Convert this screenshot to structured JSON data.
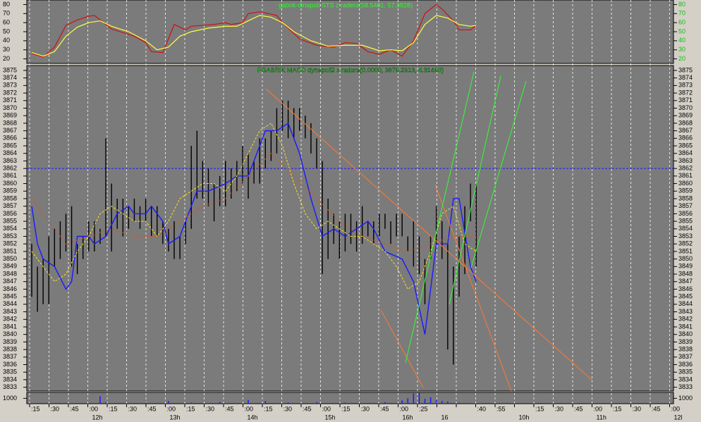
{
  "time_axis": {
    "labels": [
      ":15",
      ":30",
      ":45",
      ":00",
      ":15",
      ":30",
      ":45",
      ":00",
      ":15",
      ":30",
      ":45",
      ":00",
      ":15",
      ":30",
      ":45",
      ":00",
      ":15",
      ":30",
      ":45",
      ":00",
      ":25",
      null,
      null,
      ":40",
      ":55",
      null,
      ":15",
      ":30",
      ":45",
      ":00",
      ":15",
      ":30",
      ":45",
      ":00"
    ],
    "hours": [
      null,
      null,
      null,
      "12h",
      null,
      null,
      null,
      "13h",
      null,
      null,
      null,
      "14h",
      null,
      null,
      null,
      "15h",
      null,
      null,
      null,
      "16h",
      null,
      "16",
      null,
      null,
      null,
      "10h",
      null,
      null,
      null,
      "11h",
      null,
      null,
      null,
      "12l"
    ]
  },
  "chart_data": [
    {
      "type": "line",
      "title": "gabrik-dinapoli STS z radera(58.5481, 57.3828)",
      "ylim": [
        15,
        85
      ],
      "yticks": [
        20,
        30,
        40,
        50,
        60,
        70,
        80
      ],
      "series": [
        {
          "color": "#d01010",
          "x": [
            0,
            2,
            4,
            6,
            8,
            10,
            11,
            14,
            18,
            20,
            21,
            23,
            25,
            27,
            28,
            32,
            34,
            35,
            37,
            38,
            40,
            43,
            44,
            46,
            47,
            50,
            53,
            55,
            57,
            59,
            61,
            63,
            65,
            67,
            69,
            71,
            72,
            74,
            75,
            77,
            78
          ],
          "values": [
            26,
            22,
            33,
            57,
            63,
            67,
            68,
            53,
            45,
            38,
            28,
            27,
            58,
            52,
            56,
            58,
            60,
            58,
            60,
            70,
            72,
            68,
            60,
            48,
            42,
            35,
            33,
            38,
            37,
            28,
            25,
            30,
            23,
            40,
            70,
            80,
            75,
            62,
            52,
            52,
            57
          ]
        },
        {
          "color": "#ffff40",
          "x": [
            0,
            2,
            4,
            6,
            8,
            10,
            12,
            14,
            17,
            20,
            22,
            24,
            26,
            28,
            31,
            34,
            36,
            38,
            40,
            42,
            44,
            46,
            49,
            52,
            55,
            58,
            61,
            63,
            65,
            67,
            69,
            71,
            73,
            75,
            77,
            78
          ],
          "values": [
            27,
            23,
            28,
            45,
            55,
            60,
            62,
            56,
            50,
            40,
            30,
            33,
            45,
            50,
            54,
            56,
            56,
            62,
            68,
            66,
            60,
            50,
            40,
            34,
            35,
            35,
            29,
            30,
            29,
            38,
            58,
            68,
            65,
            58,
            56,
            57
          ]
        }
      ]
    },
    {
      "type": "ohlc",
      "title": "FGABRIK MACD dynapoli2 z radera(0.0000, 3876.2913, 4.31460)",
      "ylim": [
        3832.5,
        3875.65
      ],
      "yticks": [
        3833,
        3834,
        3835,
        3836,
        3837,
        3838,
        3839,
        3840,
        3841,
        3842,
        3843,
        3844,
        3845,
        3846,
        3847,
        3848,
        3849,
        3850,
        3851,
        3852,
        3853,
        3854,
        3855,
        3856,
        3857,
        3858,
        3859,
        3860,
        3861,
        3862,
        3863,
        3864,
        3865,
        3866,
        3867,
        3868,
        3869,
        3870,
        3871,
        3872,
        3873,
        3874,
        3875
      ],
      "high": [
        3852,
        3849,
        3850,
        3853,
        3854,
        3855,
        3856,
        3857,
        3852,
        3853,
        3855,
        3855,
        3854,
        3866,
        3860,
        3858,
        3858,
        3857,
        3858,
        3857,
        3858,
        3857,
        3857,
        3855,
        3854,
        3855,
        3853,
        3855,
        3865,
        3867,
        3863,
        3862,
        3860,
        3861,
        3863,
        3862,
        3863,
        3865,
        3864,
        3863,
        3866,
        3866,
        3867,
        3870,
        3871,
        3871,
        3870,
        3870,
        3869,
        3868,
        3866,
        3863,
        3858,
        3856,
        3855,
        3856,
        3856,
        3855,
        3857,
        3855,
        3855,
        3856,
        3856,
        3855,
        3856,
        3856,
        3853,
        3855,
        3853,
        3850,
        3853,
        3857,
        3855,
        3852,
        3849,
        3853,
        3857,
        3860,
        3860
      ],
      "low": [
        3845,
        3843,
        3844,
        3844,
        3849,
        3850,
        3851,
        3849,
        3848,
        3850,
        3851,
        3851,
        3852,
        3853,
        3851,
        3854,
        3853,
        3854,
        3855,
        3854,
        3855,
        3853,
        3853,
        3852,
        3851,
        3850,
        3850,
        3852,
        3854,
        3858,
        3858,
        3857,
        3855,
        3857,
        3857,
        3858,
        3859,
        3860,
        3858,
        3860,
        3860,
        3862,
        3863,
        3864,
        3867,
        3866,
        3866,
        3867,
        3866,
        3864,
        3862,
        3848,
        3850,
        3852,
        3850,
        3851,
        3852,
        3851,
        3852,
        3853,
        3852,
        3853,
        3854,
        3852,
        3853,
        3853,
        3851,
        3849,
        3848,
        3844,
        3850,
        3852,
        3850,
        3838,
        3836,
        3845,
        3848,
        3855,
        3849
      ],
      "hline": {
        "value": 3862,
        "color": "#1a1aff"
      },
      "series": [
        {
          "color": "#1a1aff",
          "dash": false,
          "x": [
            0,
            1,
            2,
            4,
            6,
            7,
            8,
            10,
            11,
            13,
            15,
            17,
            18,
            20,
            21,
            23,
            24,
            26,
            28,
            29,
            31,
            34,
            36,
            38,
            39,
            41,
            43,
            45,
            47,
            49,
            51,
            53,
            55,
            57,
            59,
            60,
            62,
            65,
            67,
            69,
            71,
            73,
            74,
            75,
            77,
            78
          ],
          "values": [
            3857,
            3852,
            3850,
            3849,
            3846,
            3847,
            3853,
            3853,
            3852,
            3853,
            3856,
            3857,
            3856,
            3856,
            3857,
            3855,
            3852,
            3853,
            3857,
            3859,
            3859,
            3860,
            3861,
            3861,
            3863,
            3867,
            3867,
            3868,
            3864,
            3858,
            3853,
            3854,
            3853,
            3854,
            3855,
            3854,
            3851,
            3850,
            3847,
            3840,
            3852,
            3852,
            3858,
            3858,
            3849,
            3847
          ]
        },
        {
          "color": "#ffe020",
          "dash": true,
          "x": [
            0,
            2,
            4,
            6,
            8,
            10,
            12,
            14,
            16,
            18,
            20,
            22,
            24,
            26,
            28,
            30,
            32,
            34,
            36,
            38,
            40,
            42,
            44,
            46,
            48,
            50,
            52,
            54,
            56,
            58,
            60,
            62,
            64,
            66,
            68,
            70,
            72,
            74,
            76,
            78
          ],
          "values": [
            3851,
            3849,
            3847,
            3848,
            3851,
            3853,
            3856,
            3857,
            3856,
            3855,
            3855,
            3853,
            3855,
            3858,
            3859,
            3860,
            3860,
            3859,
            3861,
            3864,
            3867,
            3868,
            3865,
            3860,
            3856,
            3854,
            3855,
            3854,
            3853,
            3853,
            3852,
            3851,
            3849,
            3846,
            3847,
            3851,
            3856,
            3857,
            3852,
            3851
          ]
        },
        {
          "color": "#c85a2a",
          "dash": true,
          "x": [
            0,
            3,
            6,
            10,
            14,
            18,
            22,
            26,
            30,
            34,
            38,
            42,
            46,
            50,
            54,
            58,
            62,
            66,
            70,
            74,
            78
          ],
          "values": [
            3858,
            3855,
            3852,
            3853,
            3854,
            3853,
            3853,
            3855,
            3857,
            3858,
            3861,
            3864,
            3861,
            3858,
            3855,
            3853,
            3852,
            3851,
            3852,
            3853,
            3853
          ]
        }
      ]
    },
    {
      "type": "bar",
      "ylim": [
        0,
        2100
      ],
      "yticks": [
        1000
      ],
      "color": "#1a1aff",
      "x": [
        12,
        13,
        20,
        24,
        28,
        33,
        38,
        41,
        45,
        50,
        55,
        62,
        65,
        66,
        67,
        68,
        69,
        70,
        71,
        72,
        73,
        75
      ],
      "values": [
        1400,
        300,
        200,
        500,
        200,
        300,
        700,
        500,
        200,
        300,
        200,
        300,
        600,
        1000,
        1900,
        2000,
        900,
        1200,
        700,
        500,
        400,
        200
      ]
    }
  ]
}
